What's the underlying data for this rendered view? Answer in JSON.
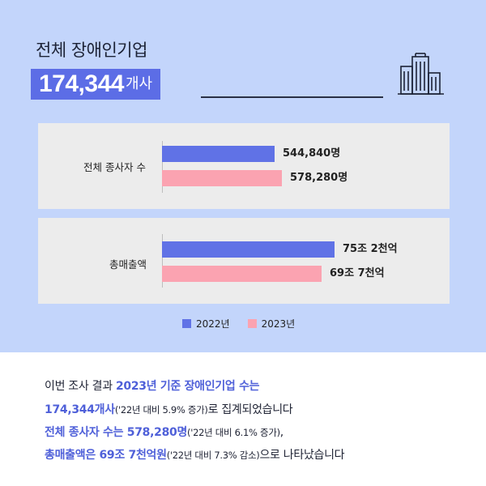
{
  "header": {
    "title": "전체 장애인기업",
    "total_number": "174,344",
    "total_unit": "개사"
  },
  "colors": {
    "series_2022": "#6072e6",
    "series_2023": "#fba3b1",
    "highlight": "#4f60d9",
    "background_top": "#c3d5fb"
  },
  "icons": {
    "building": "building-icon"
  },
  "chart_data": [
    {
      "type": "bar",
      "orientation": "horizontal",
      "categories": [
        "전체 종사자 수"
      ],
      "series": [
        {
          "name": "2022년",
          "values": [
            544840
          ],
          "label": "544,840명"
        },
        {
          "name": "2023년",
          "values": [
            578280
          ],
          "label": "578,280명"
        }
      ]
    },
    {
      "type": "bar",
      "orientation": "horizontal",
      "categories": [
        "총매출액"
      ],
      "series": [
        {
          "name": "2022년",
          "values": [
            75.2
          ],
          "label": "75조 2천억"
        },
        {
          "name": "2023년",
          "values": [
            69.7
          ],
          "label": "69조 7천억"
        }
      ]
    }
  ],
  "legend": {
    "s1": "2022년",
    "s2": "2023년"
  },
  "summary": {
    "l1a": "이번 조사 결과 ",
    "l1b": "2023년 기준 장애인기업 수는",
    "l2a": "174,344개사",
    "l2b": "('22년 대비 5.9% 증가)",
    "l2c": "로 집계되었습니다",
    "l3a": "전체 종사자 수는 578,280명",
    "l3b": "('22년 대비 6.1% 증가)",
    "l3c": ",",
    "l4a": "총매출액은 69조 7천억원",
    "l4b": "('22년 대비 7.3% 감소)",
    "l4c": "으로 나타났습니다"
  }
}
